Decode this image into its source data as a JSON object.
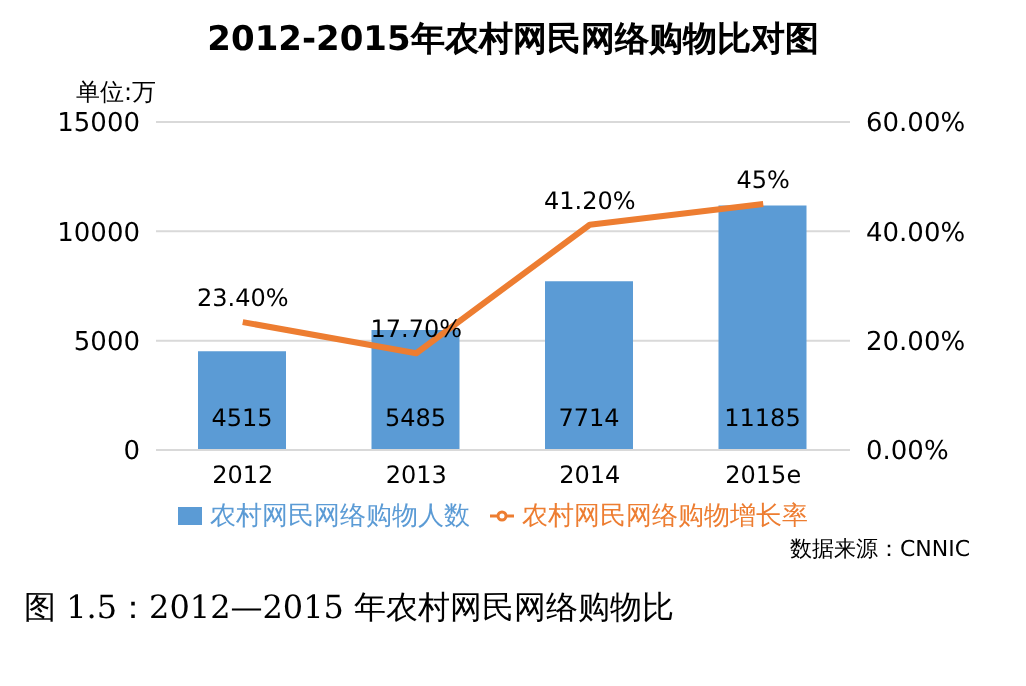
{
  "chart_data": {
    "type": "bar",
    "title": "2012-2015年农村网民网络购物比对图",
    "ylabel": "单位:万",
    "categories": [
      "2012",
      "2013",
      "2014",
      "2015e"
    ],
    "series": [
      {
        "name": "农村网民网络购物人数",
        "color": "#5b9bd5",
        "values": [
          4515,
          5485,
          7714,
          11185
        ],
        "value_labels": [
          "4515",
          "5485",
          "7714",
          "11185"
        ]
      },
      {
        "name": "农村网民网络购物增长率",
        "type": "line",
        "axis": "y2",
        "color": "#ed7d31",
        "values": [
          23.4,
          17.7,
          41.2,
          45
        ],
        "value_labels": [
          "23.40%",
          "17.70%",
          "41.20%",
          "45%"
        ]
      }
    ],
    "ylim": [
      0,
      15000
    ],
    "yticks": [
      0,
      5000,
      10000,
      15000
    ],
    "y2lim": [
      0,
      60
    ],
    "y2ticks": [
      {
        "value": 0,
        "label": "0.00%"
      },
      {
        "value": 20,
        "label": "20.00%"
      },
      {
        "value": 40,
        "label": "40.00%"
      },
      {
        "value": 60,
        "label": "60.00%"
      }
    ],
    "grid": "y",
    "legend": "bottom",
    "marker": "none",
    "annotations": [
      "数据来源：CNNIC",
      "图 1.5：2012—2015 年农村网民网络购物比"
    ]
  }
}
